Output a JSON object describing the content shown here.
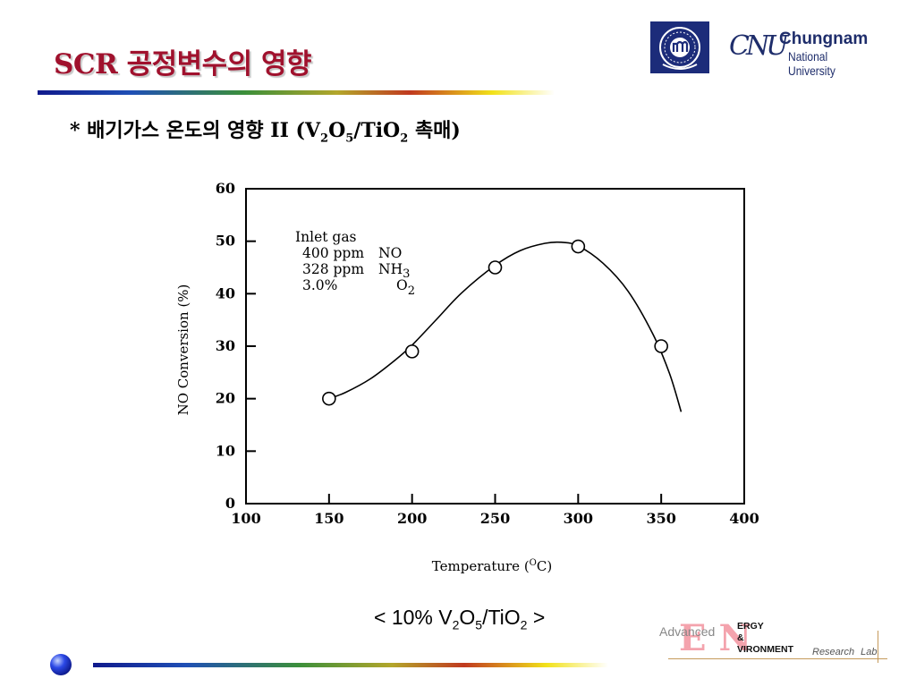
{
  "slide": {
    "title": "SCR 공정변수의 영향",
    "subtitle": {
      "lead": "* 배기가스 온도의 영향 II (V",
      "sub1": "2",
      "mid1": "O",
      "sub2": "5",
      "mid2": "/TiO",
      "sub3": "2",
      "tail": " 촉매)"
    },
    "caption": {
      "lead": "< 10% V",
      "sub1": "2",
      "mid1": "O",
      "sub2": "5",
      "mid2": "/TiO",
      "sub3": "2",
      "tail": " >"
    }
  },
  "logos": {
    "university_mark": "CNU",
    "university_name": "Chungnam",
    "university_sub": "National University",
    "lab_advanced": "Advanced",
    "lab_en": "EN",
    "lab_line1": "ERGY",
    "lab_line2": "&",
    "lab_line3": "VIRONMENT",
    "lab_research": "Research",
    "lab_lab": "Lab."
  },
  "colors": {
    "title": "#a0112d",
    "seal": "#1c2c7a",
    "logo_text": "#1e2d6b",
    "lab_en": "#f4a3ad"
  },
  "chart_data": {
    "type": "scatter",
    "title": "",
    "xlabel": "Temperature (",
    "xlabel_unit_sup": "O",
    "xlabel_unit": "C)",
    "ylabel": "NO Conversion (%)",
    "xlim": [
      100,
      400
    ],
    "ylim": [
      0,
      60
    ],
    "x_ticks": [
      100,
      150,
      200,
      250,
      300,
      350,
      400
    ],
    "y_ticks": [
      0,
      10,
      20,
      30,
      40,
      50,
      60
    ],
    "grid": false,
    "legend": "none",
    "series": [
      {
        "x": [
          150,
          200,
          250,
          300,
          350
        ],
        "y": [
          20,
          29,
          45,
          49,
          30
        ],
        "marker": "open-circle"
      }
    ],
    "fitted_curve": {
      "x": [
        150,
        160,
        175,
        190,
        200,
        215,
        230,
        250,
        265,
        280,
        290,
        300,
        315,
        330,
        345,
        355,
        362
      ],
      "y": [
        20,
        21.2,
        23.8,
        27.4,
        30.2,
        35.2,
        40.2,
        45.4,
        48.2,
        49.6,
        49.8,
        49.1,
        45.8,
        40.5,
        32.3,
        24.8,
        17.5
      ]
    },
    "annotation": {
      "heading": "Inlet gas",
      "rows": [
        {
          "amount": "400 ppm",
          "species": "NO",
          "sub": ""
        },
        {
          "amount": "328 ppm",
          "species": "NH",
          "sub": "3"
        },
        {
          "amount": "3.0%",
          "species": "O",
          "sub": "2"
        }
      ]
    }
  }
}
